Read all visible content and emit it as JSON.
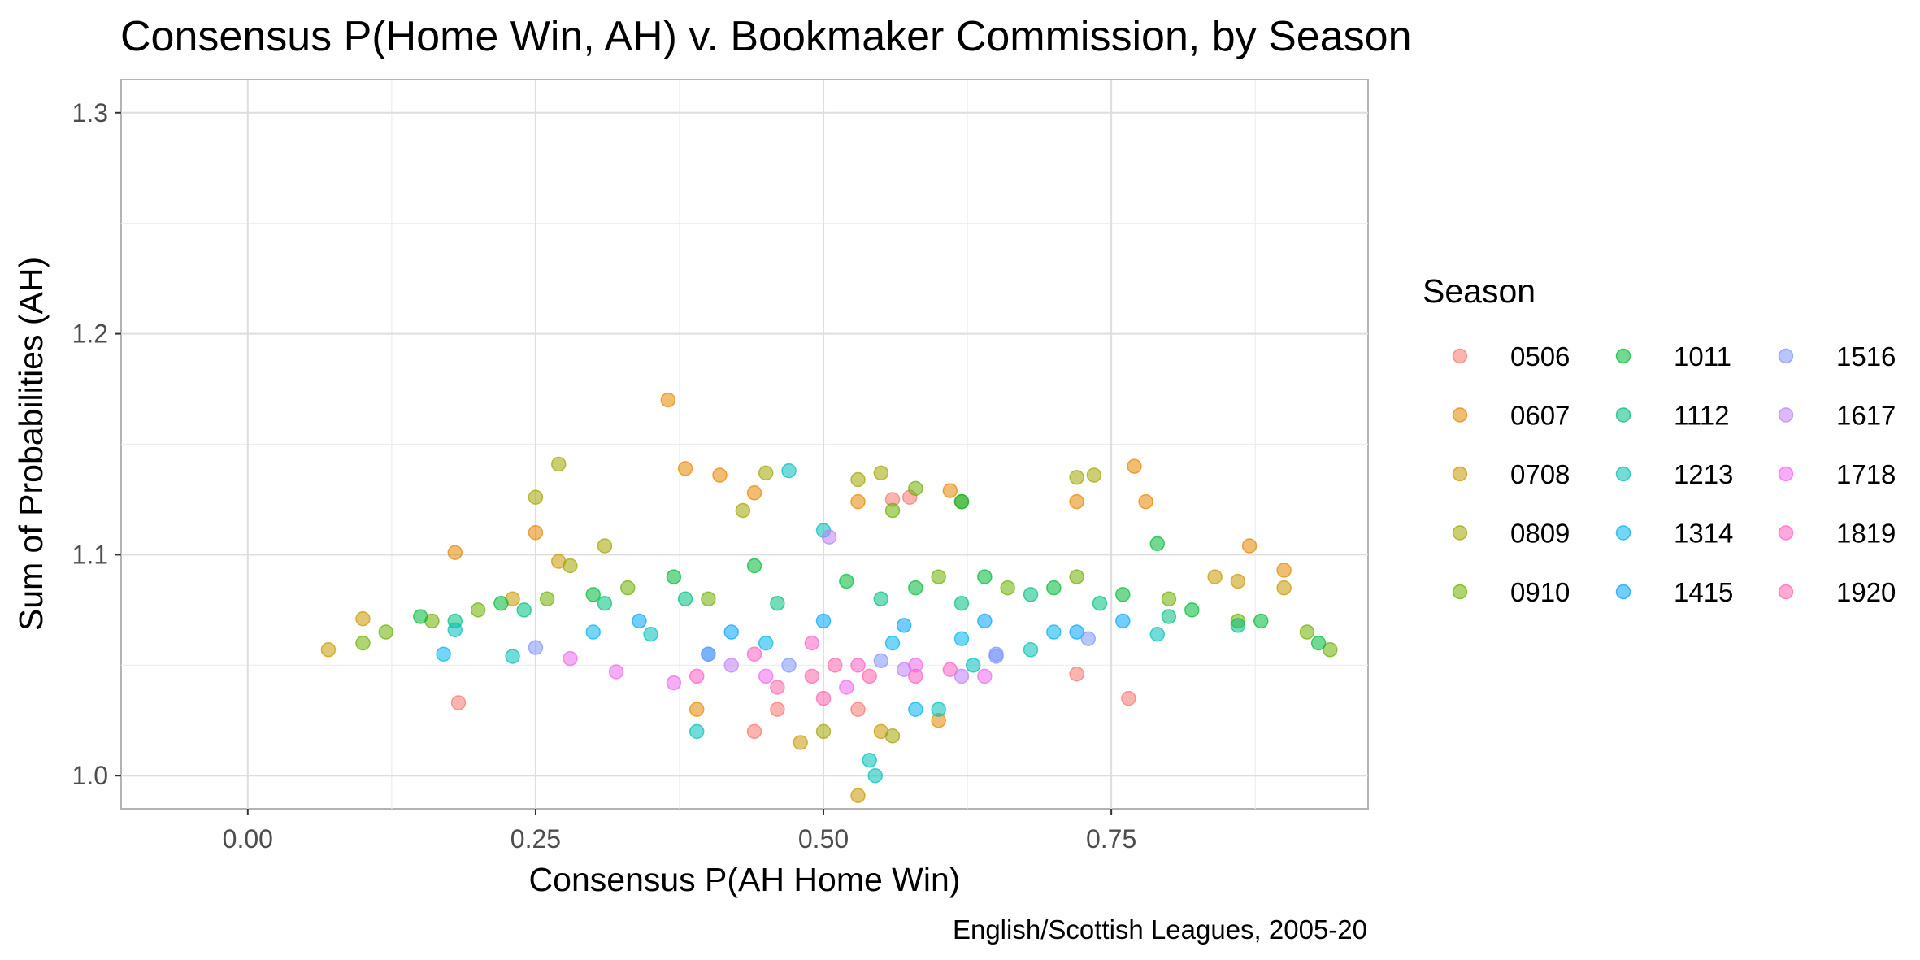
{
  "chart_data": {
    "type": "scatter",
    "title": "Consensus P(Home Win, AH) v. Bookmaker Commission, by Season",
    "xlabel": "Consensus P(AH Home Win)",
    "ylabel": "Sum of Probabilities (AH)",
    "caption": "English/Scottish Leagues, 2005-20",
    "xlim": [
      -0.11,
      0.973
    ],
    "ylim": [
      0.985,
      1.315
    ],
    "x_ticks": [
      0.0,
      0.25,
      0.5,
      0.75
    ],
    "x_tick_labels": [
      "0.00",
      "0.25",
      "0.50",
      "0.75"
    ],
    "y_ticks": [
      1.0,
      1.1,
      1.2,
      1.3
    ],
    "y_tick_labels": [
      "1.0",
      "1.1",
      "1.2",
      "1.3"
    ],
    "grid": true,
    "legend": {
      "title": "Season",
      "placement": "right",
      "columns": 3
    },
    "series": [
      {
        "name": "0506",
        "color": "#F8766D",
        "points": [
          [
            0.183,
            1.033
          ],
          [
            0.44,
            1.02
          ],
          [
            0.56,
            1.125
          ],
          [
            0.575,
            1.126
          ],
          [
            0.72,
            1.046
          ],
          [
            0.765,
            1.035
          ],
          [
            0.46,
            1.03
          ],
          [
            0.53,
            1.03
          ]
        ]
      },
      {
        "name": "0607",
        "color": "#E58700",
        "points": [
          [
            0.365,
            1.17
          ],
          [
            0.38,
            1.139
          ],
          [
            0.41,
            1.136
          ],
          [
            0.44,
            1.128
          ],
          [
            0.61,
            1.129
          ],
          [
            0.72,
            1.124
          ],
          [
            0.77,
            1.14
          ],
          [
            0.78,
            1.124
          ],
          [
            0.87,
            1.104
          ],
          [
            0.18,
            1.101
          ],
          [
            0.25,
            1.11
          ],
          [
            0.39,
            1.03
          ],
          [
            0.6,
            1.025
          ],
          [
            0.9,
            1.093
          ],
          [
            0.53,
            1.124
          ]
        ]
      },
      {
        "name": "0708",
        "color": "#C99800",
        "points": [
          [
            0.07,
            1.057
          ],
          [
            0.1,
            1.071
          ],
          [
            0.27,
            1.097
          ],
          [
            0.53,
            0.991
          ],
          [
            0.48,
            1.015
          ],
          [
            0.55,
            1.02
          ],
          [
            0.84,
            1.09
          ],
          [
            0.86,
            1.088
          ],
          [
            0.9,
            1.085
          ],
          [
            0.23,
            1.08
          ]
        ]
      },
      {
        "name": "0809",
        "color": "#A3A500",
        "points": [
          [
            0.27,
            1.141
          ],
          [
            0.25,
            1.126
          ],
          [
            0.45,
            1.137
          ],
          [
            0.53,
            1.134
          ],
          [
            0.55,
            1.137
          ],
          [
            0.735,
            1.136
          ],
          [
            0.72,
            1.135
          ],
          [
            0.31,
            1.104
          ],
          [
            0.28,
            1.095
          ],
          [
            0.5,
            1.02
          ],
          [
            0.56,
            1.018
          ],
          [
            0.43,
            1.12
          ],
          [
            0.62,
            1.124
          ]
        ]
      },
      {
        "name": "0910",
        "color": "#6BB100",
        "points": [
          [
            0.1,
            1.06
          ],
          [
            0.12,
            1.065
          ],
          [
            0.16,
            1.07
          ],
          [
            0.2,
            1.075
          ],
          [
            0.26,
            1.08
          ],
          [
            0.33,
            1.085
          ],
          [
            0.4,
            1.08
          ],
          [
            0.6,
            1.09
          ],
          [
            0.66,
            1.085
          ],
          [
            0.72,
            1.09
          ],
          [
            0.8,
            1.08
          ],
          [
            0.86,
            1.07
          ],
          [
            0.92,
            1.065
          ],
          [
            0.94,
            1.057
          ],
          [
            0.58,
            1.13
          ],
          [
            0.56,
            1.12
          ]
        ]
      },
      {
        "name": "1011",
        "color": "#00BA38",
        "points": [
          [
            0.15,
            1.072
          ],
          [
            0.22,
            1.078
          ],
          [
            0.3,
            1.082
          ],
          [
            0.37,
            1.09
          ],
          [
            0.44,
            1.095
          ],
          [
            0.52,
            1.088
          ],
          [
            0.58,
            1.085
          ],
          [
            0.64,
            1.09
          ],
          [
            0.7,
            1.085
          ],
          [
            0.76,
            1.082
          ],
          [
            0.82,
            1.075
          ],
          [
            0.88,
            1.07
          ],
          [
            0.93,
            1.06
          ],
          [
            0.62,
            1.124
          ],
          [
            0.79,
            1.105
          ]
        ]
      },
      {
        "name": "1112",
        "color": "#00BF7D",
        "points": [
          [
            0.18,
            1.07
          ],
          [
            0.24,
            1.075
          ],
          [
            0.31,
            1.078
          ],
          [
            0.38,
            1.08
          ],
          [
            0.46,
            1.078
          ],
          [
            0.55,
            1.08
          ],
          [
            0.62,
            1.078
          ],
          [
            0.68,
            1.082
          ],
          [
            0.74,
            1.078
          ],
          [
            0.8,
            1.072
          ],
          [
            0.86,
            1.068
          ]
        ]
      },
      {
        "name": "1213",
        "color": "#00C0B8",
        "points": [
          [
            0.18,
            1.066
          ],
          [
            0.23,
            1.054
          ],
          [
            0.39,
            1.02
          ],
          [
            0.5,
            1.111
          ],
          [
            0.54,
            1.007
          ],
          [
            0.545,
            1.0
          ],
          [
            0.47,
            1.138
          ],
          [
            0.35,
            1.064
          ],
          [
            0.68,
            1.057
          ],
          [
            0.6,
            1.03
          ],
          [
            0.79,
            1.064
          ],
          [
            0.63,
            1.05
          ]
        ]
      },
      {
        "name": "1314",
        "color": "#00B4EF",
        "points": [
          [
            0.17,
            1.055
          ],
          [
            0.3,
            1.065
          ],
          [
            0.4,
            1.055
          ],
          [
            0.45,
            1.06
          ],
          [
            0.56,
            1.06
          ],
          [
            0.62,
            1.062
          ],
          [
            0.7,
            1.065
          ],
          [
            0.58,
            1.03
          ]
        ]
      },
      {
        "name": "1415",
        "color": "#00A5FF",
        "points": [
          [
            0.34,
            1.07
          ],
          [
            0.42,
            1.065
          ],
          [
            0.5,
            1.07
          ],
          [
            0.57,
            1.068
          ],
          [
            0.64,
            1.07
          ],
          [
            0.72,
            1.065
          ],
          [
            0.76,
            1.07
          ]
        ]
      },
      {
        "name": "1516",
        "color": "#7F96FF",
        "points": [
          [
            0.25,
            1.058
          ],
          [
            0.4,
            1.055
          ],
          [
            0.47,
            1.05
          ],
          [
            0.55,
            1.052
          ],
          [
            0.65,
            1.055
          ],
          [
            0.73,
            1.062
          ],
          [
            0.65,
            1.054
          ]
        ]
      },
      {
        "name": "1617",
        "color": "#BF80FF",
        "points": [
          [
            0.505,
            1.108
          ],
          [
            0.42,
            1.05
          ],
          [
            0.57,
            1.048
          ],
          [
            0.62,
            1.045
          ]
        ]
      },
      {
        "name": "1718",
        "color": "#EC69EF",
        "points": [
          [
            0.28,
            1.053
          ],
          [
            0.32,
            1.047
          ],
          [
            0.37,
            1.042
          ],
          [
            0.45,
            1.045
          ],
          [
            0.52,
            1.04
          ],
          [
            0.58,
            1.05
          ],
          [
            0.64,
            1.045
          ]
        ]
      },
      {
        "name": "1819",
        "color": "#FF61C7",
        "points": [
          [
            0.39,
            1.045
          ],
          [
            0.44,
            1.055
          ],
          [
            0.49,
            1.06
          ],
          [
            0.53,
            1.05
          ],
          [
            0.58,
            1.045
          ],
          [
            0.61,
            1.048
          ]
        ]
      },
      {
        "name": "1920",
        "color": "#FF65AC",
        "points": [
          [
            0.46,
            1.04
          ],
          [
            0.49,
            1.045
          ],
          [
            0.51,
            1.05
          ],
          [
            0.54,
            1.045
          ],
          [
            0.5,
            1.035
          ]
        ]
      }
    ]
  }
}
